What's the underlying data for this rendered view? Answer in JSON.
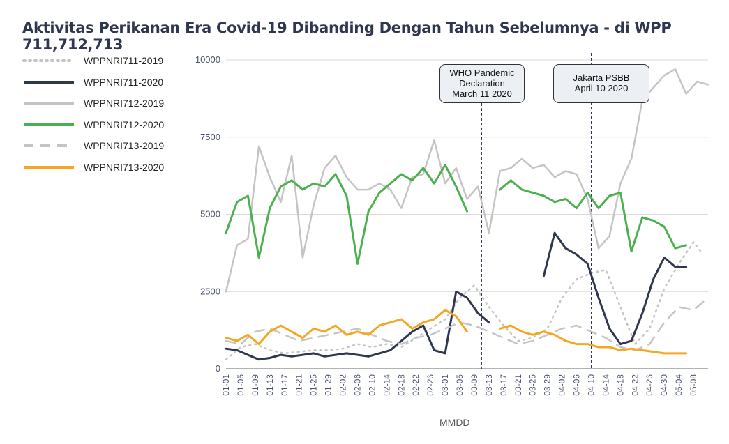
{
  "title": "Aktivitas Perikanan Era Covid-19 Dibanding Dengan Tahun Sebelumnya - di WPP 711,712,713",
  "chart_data": {
    "type": "line",
    "title": "Aktivitas Perikanan Era Covid-19 Dibanding Dengan Tahun Sebelumnya - di WPP 711,712,713",
    "xlabel": "MMDD",
    "ylabel": "",
    "ylim": [
      0,
      10000
    ],
    "yticks": [
      "0",
      "2500",
      "5000",
      "7500",
      "10000"
    ],
    "xticks": [
      "01-01",
      "01-05",
      "01-09",
      "01-13",
      "01-17",
      "01-21",
      "01-25",
      "01-29",
      "02-02",
      "02-06",
      "02-10",
      "02-14",
      "02-18",
      "02-22",
      "02-26",
      "03-01",
      "03-05",
      "03-09",
      "03-13",
      "03-17",
      "03-21",
      "03-25",
      "03-29",
      "04-02",
      "04-06",
      "04-10",
      "04-14",
      "04-18",
      "04-22",
      "04-26",
      "04-30",
      "05-04",
      "05-08"
    ],
    "grid": true,
    "legend_position": "left",
    "series": [
      {
        "name": "WPPNRI711-2019",
        "color": "#c4c4c4",
        "style": "dotted",
        "x": [
          0,
          4,
          8,
          12,
          16,
          20,
          24,
          28,
          32,
          36,
          40,
          44,
          48,
          52,
          56,
          60,
          64,
          68,
          72,
          76,
          80,
          84,
          88,
          92,
          96,
          100,
          104,
          108,
          112,
          116,
          120,
          124,
          128,
          130
        ],
        "y": [
          300,
          700,
          800,
          600,
          500,
          550,
          600,
          600,
          650,
          800,
          700,
          800,
          700,
          1000,
          1300,
          1600,
          2300,
          2700,
          2000,
          1400,
          900,
          1000,
          1300,
          2300,
          2900,
          3100,
          3200,
          2000,
          800,
          1300,
          2600,
          3400,
          4100,
          3800
        ]
      },
      {
        "name": "WPPNRI711-2020",
        "color": "#2e3650",
        "style": "solid",
        "x": [
          0,
          3,
          6,
          9,
          12,
          15,
          18,
          21,
          24,
          27,
          30,
          33,
          36,
          39,
          42,
          45,
          48,
          51,
          54,
          57,
          60,
          63,
          66,
          69,
          72,
          75,
          78,
          81,
          84,
          87,
          90,
          93,
          96,
          99,
          102,
          105,
          108,
          111,
          114,
          117,
          120,
          123,
          126
        ],
        "y": [
          650,
          600,
          450,
          300,
          350,
          450,
          400,
          450,
          500,
          400,
          450,
          500,
          450,
          400,
          500,
          600,
          900,
          1200,
          1400,
          600,
          500,
          2500,
          2300,
          1800,
          1500,
          null,
          null,
          null,
          null,
          3000,
          4400,
          3900,
          3700,
          3400,
          2300,
          1300,
          800,
          900,
          1800,
          2900,
          3600,
          3300,
          3300
        ]
      },
      {
        "name": "WPPNRI712-2019",
        "color": "#c4c4c4",
        "style": "solid",
        "x": [
          0,
          3,
          6,
          9,
          12,
          15,
          18,
          21,
          24,
          27,
          30,
          33,
          36,
          39,
          42,
          45,
          48,
          51,
          54,
          57,
          60,
          63,
          66,
          69,
          72,
          75,
          78,
          81,
          84,
          87,
          90,
          93,
          96,
          99,
          102,
          105,
          108,
          111,
          114,
          117,
          120,
          123,
          126,
          129,
          132
        ],
        "y": [
          2500,
          4000,
          4200,
          7200,
          6200,
          5400,
          6900,
          3600,
          5300,
          6500,
          6900,
          6200,
          5800,
          5800,
          6000,
          5800,
          5200,
          6200,
          6300,
          7400,
          6000,
          6500,
          5500,
          5900,
          4400,
          6400,
          6500,
          6800,
          6500,
          6600,
          6200,
          6400,
          6300,
          5500,
          3900,
          4300,
          6000,
          6800,
          8700,
          9100,
          9500,
          9700,
          8900,
          9300,
          9200
        ]
      },
      {
        "name": "WPPNRI712-2020",
        "color": "#4caf50",
        "style": "solid",
        "x": [
          0,
          3,
          6,
          9,
          12,
          15,
          18,
          21,
          24,
          27,
          30,
          33,
          36,
          39,
          42,
          45,
          48,
          51,
          54,
          57,
          60,
          63,
          66,
          null,
          75,
          78,
          81,
          84,
          87,
          90,
          93,
          96,
          99,
          102,
          105,
          108,
          111,
          114,
          117,
          120,
          123,
          126
        ],
        "y": [
          4400,
          5400,
          5600,
          3600,
          5200,
          5900,
          6100,
          5800,
          6000,
          5900,
          6300,
          5600,
          3400,
          5100,
          5700,
          6000,
          6300,
          6100,
          6500,
          6000,
          6600,
          5900,
          5100,
          null,
          5800,
          6100,
          5800,
          5700,
          5600,
          5400,
          5500,
          5200,
          5700,
          5200,
          5600,
          5700,
          3800,
          4900,
          4800,
          4600,
          3900,
          4000
        ]
      },
      {
        "name": "WPPNRI713-2019",
        "color": "#c4c4c4",
        "style": "dashed",
        "x": [
          0,
          4,
          8,
          12,
          16,
          20,
          24,
          28,
          32,
          36,
          40,
          44,
          48,
          52,
          56,
          60,
          64,
          68,
          72,
          76,
          80,
          84,
          88,
          92,
          96,
          100,
          104,
          108,
          112,
          116,
          120,
          124,
          128,
          132
        ],
        "y": [
          900,
          800,
          1200,
          1300,
          1100,
          900,
          1000,
          1100,
          1200,
          1300,
          1100,
          900,
          800,
          1000,
          1100,
          1300,
          1500,
          1400,
          1200,
          1000,
          800,
          900,
          1100,
          1300,
          1400,
          1200,
          1000,
          700,
          600,
          800,
          1500,
          2000,
          1900,
          2300
        ]
      },
      {
        "name": "WPPNRI713-2020",
        "color": "#f5a623",
        "style": "solid",
        "x": [
          0,
          3,
          6,
          9,
          12,
          15,
          18,
          21,
          24,
          27,
          30,
          33,
          36,
          39,
          42,
          45,
          48,
          51,
          54,
          57,
          60,
          63,
          66,
          null,
          75,
          78,
          81,
          84,
          87,
          90,
          93,
          96,
          99,
          102,
          105,
          108,
          111,
          114,
          117,
          120,
          123,
          126
        ],
        "y": [
          1000,
          900,
          1100,
          800,
          1200,
          1400,
          1200,
          1000,
          1300,
          1200,
          1400,
          1100,
          1200,
          1100,
          1400,
          1500,
          1600,
          1300,
          1500,
          1600,
          1900,
          1700,
          1200,
          null,
          1300,
          1400,
          1200,
          1100,
          1200,
          1100,
          900,
          800,
          800,
          700,
          700,
          600,
          650,
          600,
          550,
          500,
          500,
          500
        ]
      }
    ],
    "annotations": [
      {
        "lines": [
          "WHO Pandemic",
          "Declaration",
          "March 11 2020"
        ],
        "x_label": "03-11"
      },
      {
        "lines": [
          "Jakarta PSBB",
          "April 10 2020"
        ],
        "x_label": "04-10"
      }
    ]
  }
}
